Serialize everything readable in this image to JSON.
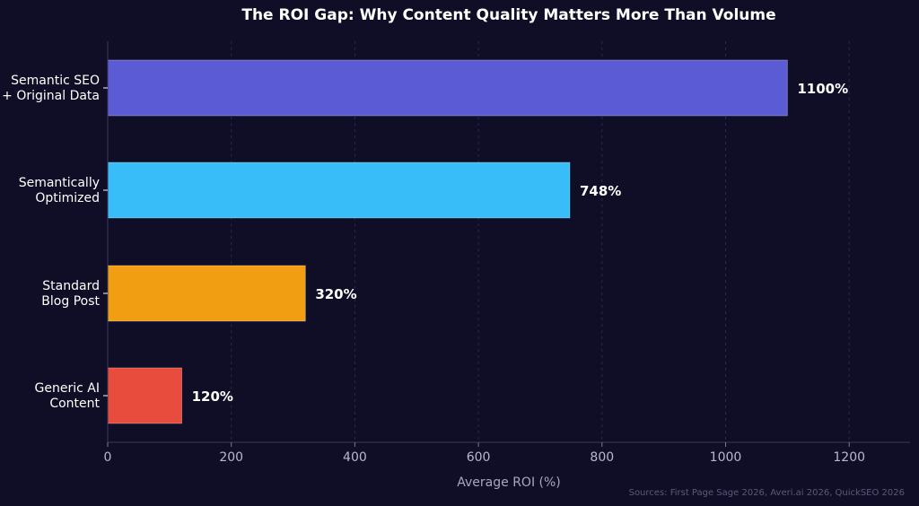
{
  "chart_data": {
    "type": "bar",
    "orientation": "horizontal",
    "title": "The ROI Gap: Why Content Quality Matters More Than Volume",
    "xlabel": "Average ROI (%)",
    "ylabel": "",
    "xlim": [
      0,
      1300
    ],
    "xticks": [
      0,
      200,
      400,
      600,
      800,
      1000,
      1200
    ],
    "grid": "vertical-dashed",
    "categories": [
      [
        "Semantic SEO",
        "+ Original Data"
      ],
      [
        "Semantically",
        "Optimized"
      ],
      [
        "Standard",
        "Blog Post"
      ],
      [
        "Generic AI",
        "Content"
      ]
    ],
    "values": [
      1100,
      748,
      320,
      120
    ],
    "data_labels": [
      "1100%",
      "748%",
      "320%",
      "120%"
    ],
    "colors": [
      "#5b5bd6",
      "#38bdf8",
      "#f29e12",
      "#e74c3c"
    ],
    "source": "Sources: First Page Sage 2026, Averi.ai 2026, QuickSEO 2026"
  }
}
